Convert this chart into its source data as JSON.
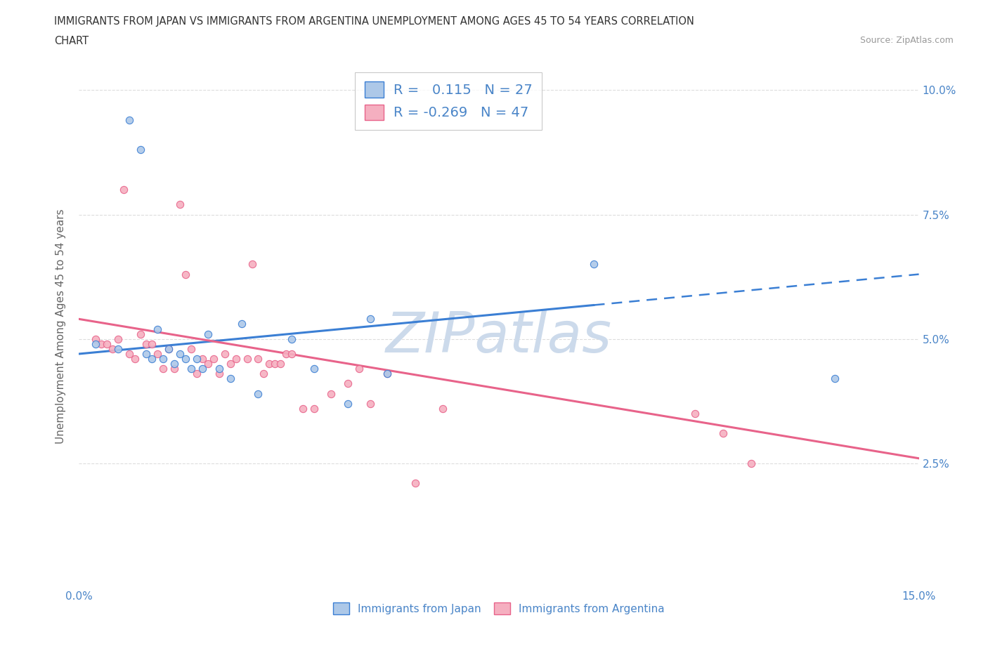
{
  "title_line1": "IMMIGRANTS FROM JAPAN VS IMMIGRANTS FROM ARGENTINA UNEMPLOYMENT AMONG AGES 45 TO 54 YEARS CORRELATION",
  "title_line2": "CHART",
  "source": "Source: ZipAtlas.com",
  "ylabel": "Unemployment Among Ages 45 to 54 years",
  "xlim": [
    0.0,
    0.15
  ],
  "ylim": [
    0.0,
    0.105
  ],
  "xticks": [
    0.0,
    0.025,
    0.05,
    0.075,
    0.1,
    0.125,
    0.15
  ],
  "yticks": [
    0.0,
    0.025,
    0.05,
    0.075,
    0.1
  ],
  "ytick_labels": [
    "",
    "2.5%",
    "5.0%",
    "7.5%",
    "10.0%"
  ],
  "japan_R": 0.115,
  "japan_N": 27,
  "argentina_R": -0.269,
  "argentina_N": 47,
  "japan_color": "#adc8e8",
  "argentina_color": "#f5afc0",
  "japan_line_color": "#3b7fd4",
  "argentina_line_color": "#e8638a",
  "japan_x": [
    0.003,
    0.007,
    0.009,
    0.011,
    0.012,
    0.013,
    0.014,
    0.015,
    0.016,
    0.017,
    0.018,
    0.019,
    0.02,
    0.021,
    0.022,
    0.023,
    0.025,
    0.027,
    0.029,
    0.032,
    0.038,
    0.042,
    0.048,
    0.052,
    0.055,
    0.092,
    0.135
  ],
  "japan_y": [
    0.049,
    0.048,
    0.094,
    0.088,
    0.047,
    0.046,
    0.052,
    0.046,
    0.048,
    0.045,
    0.047,
    0.046,
    0.044,
    0.046,
    0.044,
    0.051,
    0.044,
    0.042,
    0.053,
    0.039,
    0.05,
    0.044,
    0.037,
    0.054,
    0.043,
    0.065,
    0.042
  ],
  "argentina_x": [
    0.003,
    0.004,
    0.005,
    0.006,
    0.007,
    0.008,
    0.009,
    0.01,
    0.011,
    0.012,
    0.013,
    0.014,
    0.015,
    0.016,
    0.017,
    0.018,
    0.019,
    0.02,
    0.021,
    0.022,
    0.023,
    0.024,
    0.025,
    0.026,
    0.027,
    0.028,
    0.03,
    0.031,
    0.032,
    0.033,
    0.034,
    0.035,
    0.036,
    0.037,
    0.038,
    0.04,
    0.042,
    0.045,
    0.048,
    0.05,
    0.052,
    0.055,
    0.06,
    0.065,
    0.11,
    0.115,
    0.12
  ],
  "argentina_y": [
    0.05,
    0.049,
    0.049,
    0.048,
    0.05,
    0.08,
    0.047,
    0.046,
    0.051,
    0.049,
    0.049,
    0.047,
    0.044,
    0.048,
    0.044,
    0.077,
    0.063,
    0.048,
    0.043,
    0.046,
    0.045,
    0.046,
    0.043,
    0.047,
    0.045,
    0.046,
    0.046,
    0.065,
    0.046,
    0.043,
    0.045,
    0.045,
    0.045,
    0.047,
    0.047,
    0.036,
    0.036,
    0.039,
    0.041,
    0.044,
    0.037,
    0.043,
    0.021,
    0.036,
    0.035,
    0.031,
    0.025
  ],
  "watermark": "ZIPatlas",
  "watermark_color": "#ccdaeb",
  "background_color": "#ffffff",
  "grid_color": "#dddddd"
}
